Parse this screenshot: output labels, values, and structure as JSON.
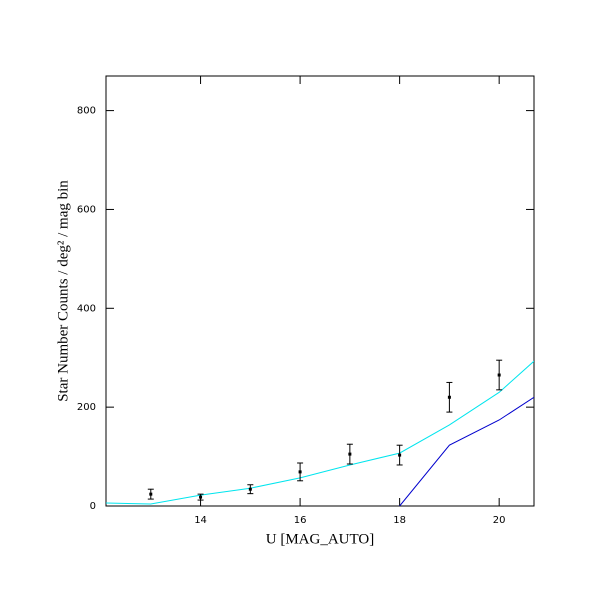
{
  "chart_data": {
    "type": "line",
    "xlabel": "U [MAG_AUTO]",
    "ylabel": "Star Number Counts / deg² / mag bin",
    "xlim": [
      12.1,
      20.7
    ],
    "ylim": [
      0,
      870
    ],
    "xticks": [
      14,
      16,
      18,
      20
    ],
    "yticks": [
      0,
      200,
      400,
      600,
      800
    ],
    "points": {
      "color": "#000000",
      "x": [
        13,
        14,
        15,
        16,
        17,
        18,
        19,
        20
      ],
      "values": [
        24,
        18,
        34,
        69,
        105,
        103,
        220,
        265
      ],
      "errors": [
        10,
        6,
        9,
        18,
        20,
        20,
        30,
        30
      ]
    },
    "lines": [
      {
        "color": "#00e5ee",
        "x": [
          12.1,
          13,
          14,
          15,
          16,
          17,
          18,
          19,
          20,
          20.7
        ],
        "values": [
          6,
          4,
          22,
          36,
          57,
          83,
          107,
          164,
          230,
          293
        ]
      },
      {
        "color": "#0000cd",
        "x": [
          18,
          19,
          20,
          20.7
        ],
        "values": [
          0,
          123,
          174,
          220
        ]
      }
    ]
  }
}
